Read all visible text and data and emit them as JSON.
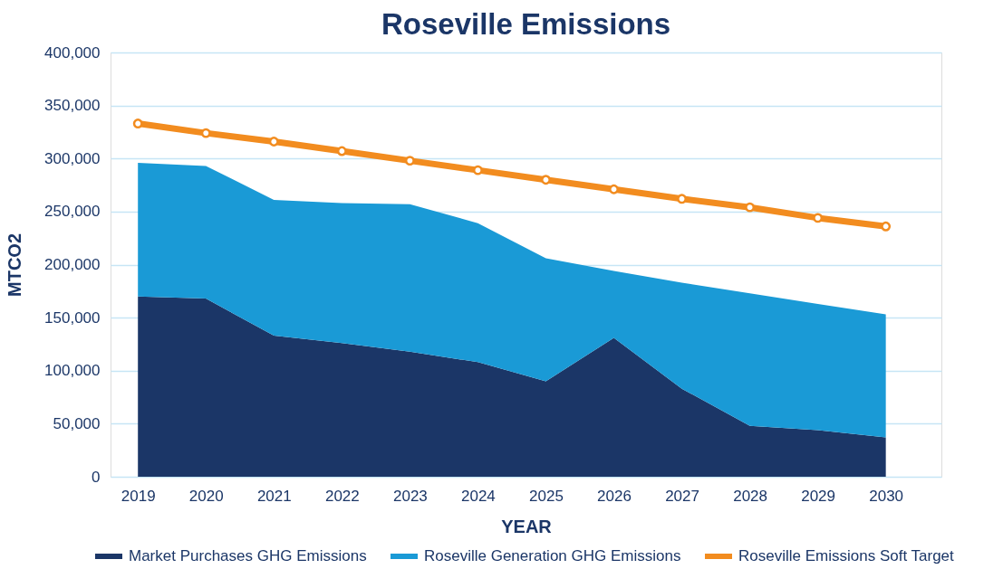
{
  "chart_data": {
    "type": "area",
    "title": "Roseville Emissions",
    "xlabel": "YEAR",
    "ylabel": "MTCO2",
    "categories": [
      "2019",
      "2020",
      "2021",
      "2022",
      "2023",
      "2024",
      "2025",
      "2026",
      "2027",
      "2028",
      "2029",
      "2030"
    ],
    "stacked": true,
    "ylim": [
      0,
      400000
    ],
    "yticks": [
      0,
      {
        "value": 50000,
        "label": "50,000"
      },
      {
        "value": 100000,
        "label": "100,000"
      },
      {
        "value": 150000,
        "label": "150,000"
      },
      {
        "value": 200000,
        "label": "200,000"
      },
      {
        "value": 250000,
        "label": "250,000"
      },
      {
        "value": 300000,
        "label": "300,000"
      },
      {
        "value": 350000,
        "label": "350,000"
      },
      {
        "value": 400000,
        "label": "400,000"
      }
    ],
    "grid": "y",
    "legend": "bottom",
    "series": [
      {
        "name": "Market Purchases GHG Emissions",
        "color": "#1b3667",
        "values": [
          170000,
          168000,
          133000,
          126000,
          118000,
          108000,
          90000,
          131000,
          83000,
          48000,
          44000,
          37000
        ]
      },
      {
        "name": "Roseville Generation GHG Emissions",
        "color": "#1a9ad6",
        "values": [
          126000,
          125000,
          128000,
          132000,
          139000,
          131000,
          116000,
          63000,
          100000,
          125000,
          119000,
          116000
        ]
      },
      {
        "name": "Roseville Emissions Soft Target",
        "type": "line",
        "color": "#f28c1f",
        "marker": "circle",
        "line_style": "solid",
        "values": [
          333000,
          324000,
          316000,
          307000,
          298000,
          289000,
          280000,
          271000,
          262000,
          254000,
          244000,
          236000
        ]
      }
    ]
  }
}
